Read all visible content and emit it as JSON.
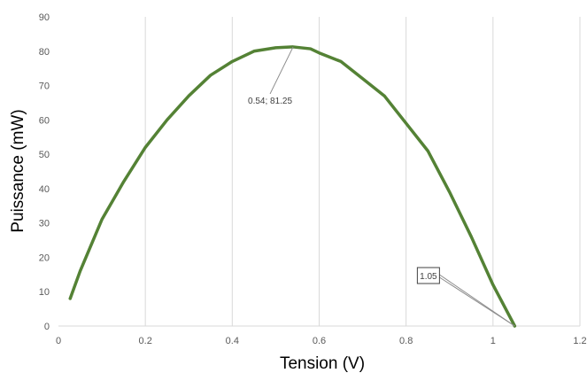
{
  "chart_data": {
    "type": "line",
    "title": "",
    "xlabel": "Tension (V)",
    "ylabel": "Puissance (mW)",
    "xlim": [
      0,
      1.2
    ],
    "ylim": [
      0,
      90
    ],
    "x_ticks": [
      "0",
      "0.2",
      "0.4",
      "0.6",
      "0.8",
      "1",
      "1.2"
    ],
    "y_ticks": [
      "0",
      "10",
      "20",
      "30",
      "40",
      "50",
      "60",
      "70",
      "80",
      "90"
    ],
    "grid": "vertical",
    "legend": "none",
    "series": [
      {
        "color": "#548235",
        "x": [
          0.027,
          0.05,
          0.1,
          0.15,
          0.2,
          0.25,
          0.3,
          0.35,
          0.4,
          0.45,
          0.5,
          0.54,
          0.58,
          0.6,
          0.65,
          0.7,
          0.75,
          0.8,
          0.85,
          0.9,
          0.95,
          1.0,
          1.05
        ],
        "y": [
          8,
          16,
          31,
          42,
          52,
          60,
          67,
          73,
          77,
          80,
          81,
          81.25,
          80.7,
          79.5,
          77,
          72,
          67,
          59,
          51,
          39,
          26,
          12,
          0
        ]
      }
    ],
    "annotations": [
      {
        "text": "0.54; 81.25",
        "x": 0.54,
        "y": 81.25,
        "boxed": false
      },
      {
        "text": "1.05",
        "x": 1.05,
        "y": 0,
        "boxed": true
      }
    ]
  }
}
